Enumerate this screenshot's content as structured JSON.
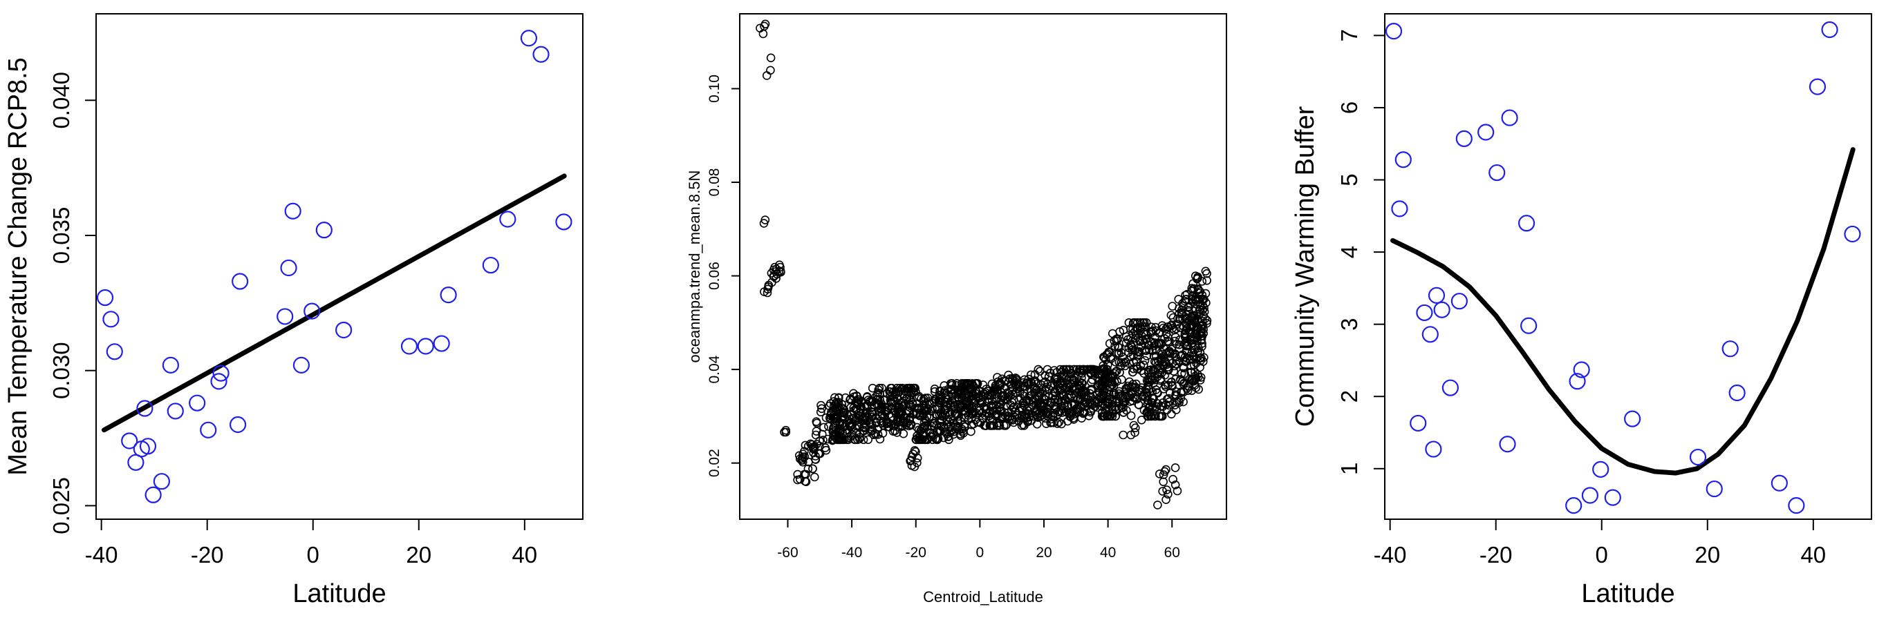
{
  "chart_data": [
    {
      "type": "scatter",
      "xlabel": "Latitude",
      "ylabel": "Mean Temperature Change RCP8.5",
      "xlim": [
        -41,
        51
      ],
      "ylim": [
        0.0245,
        0.0432
      ],
      "xticks": [
        -40,
        -20,
        0,
        20,
        40
      ],
      "xtick_labels": [
        "-40",
        "-20",
        "0",
        "20",
        "40"
      ],
      "yticks": [
        0.025,
        0.03,
        0.035,
        0.04
      ],
      "ytick_labels": [
        "0.025",
        "0.030",
        "0.035",
        "0.040"
      ],
      "point_color": "#2020ee",
      "fit_color": "#000000",
      "points": [
        {
          "x": -39.3,
          "y": 0.0327
        },
        {
          "x": -38.2,
          "y": 0.0319
        },
        {
          "x": -37.5,
          "y": 0.0307
        },
        {
          "x": -34.7,
          "y": 0.0274
        },
        {
          "x": -33.5,
          "y": 0.0266
        },
        {
          "x": -32.4,
          "y": 0.0271
        },
        {
          "x": -31.8,
          "y": 0.0286
        },
        {
          "x": -31.2,
          "y": 0.0272
        },
        {
          "x": -30.2,
          "y": 0.0254
        },
        {
          "x": -28.6,
          "y": 0.0259
        },
        {
          "x": -26.9,
          "y": 0.0302
        },
        {
          "x": -26.0,
          "y": 0.0285
        },
        {
          "x": -21.9,
          "y": 0.0288
        },
        {
          "x": -19.8,
          "y": 0.0278
        },
        {
          "x": -17.8,
          "y": 0.0296
        },
        {
          "x": -17.4,
          "y": 0.0299
        },
        {
          "x": -14.2,
          "y": 0.028
        },
        {
          "x": -13.8,
          "y": 0.0333
        },
        {
          "x": -5.3,
          "y": 0.032
        },
        {
          "x": -4.6,
          "y": 0.0338
        },
        {
          "x": -3.8,
          "y": 0.0359
        },
        {
          "x": -2.2,
          "y": 0.0302
        },
        {
          "x": -0.2,
          "y": 0.0322
        },
        {
          "x": 2.1,
          "y": 0.0352
        },
        {
          "x": 5.8,
          "y": 0.0315
        },
        {
          "x": 18.2,
          "y": 0.0309
        },
        {
          "x": 21.3,
          "y": 0.0309
        },
        {
          "x": 24.3,
          "y": 0.031
        },
        {
          "x": 25.6,
          "y": 0.0328
        },
        {
          "x": 33.6,
          "y": 0.0339
        },
        {
          "x": 36.8,
          "y": 0.0356
        },
        {
          "x": 40.8,
          "y": 0.0423
        },
        {
          "x": 43.1,
          "y": 0.0417
        },
        {
          "x": 47.4,
          "y": 0.0355
        }
      ],
      "fit_line": [
        {
          "x": -39.5,
          "y": 0.0278
        },
        {
          "x": 47.5,
          "y": 0.0372
        }
      ]
    },
    {
      "type": "scatter",
      "xlabel": "Centroid_Latitude",
      "ylabel": "oceanmpa.trend_mean.8.5N",
      "xlim": [
        -75,
        77
      ],
      "ylim": [
        0.008,
        0.116
      ],
      "xticks": [
        -60,
        -40,
        -20,
        0,
        20,
        40,
        60
      ],
      "xtick_labels": [
        "-60",
        "-40",
        "-20",
        "0",
        "20",
        "40",
        "60"
      ],
      "yticks": [
        0.02,
        0.04,
        0.06,
        0.08,
        0.1
      ],
      "ytick_labels": [
        "0.02",
        "0.04",
        "0.06",
        "0.08",
        "0.10"
      ],
      "point_color": "#000000",
      "clusters": [
        {
          "x": [
            -69,
            -67
          ],
          "y": [
            0.11,
            0.114
          ],
          "n": 4,
          "jitter": 0.001
        },
        {
          "x": [
            -67,
            -65
          ],
          "y": [
            0.102,
            0.107
          ],
          "n": 3,
          "jitter": 0.001
        },
        {
          "x": [
            -68,
            -66
          ],
          "y": [
            0.07,
            0.073
          ],
          "n": 2,
          "jitter": 0.001
        },
        {
          "x": [
            -68,
            -66
          ],
          "y": [
            0.056,
            0.058
          ],
          "n": 4,
          "jitter": 0.001
        },
        {
          "x": [
            -66,
            -62
          ],
          "y": [
            0.058,
            0.064
          ],
          "n": 16,
          "jitter": 0.002
        },
        {
          "x": [
            -63,
            -60
          ],
          "y": [
            0.026,
            0.027
          ],
          "n": 3,
          "jitter": 0.001
        },
        {
          "x": [
            -57,
            -50
          ],
          "y": [
            0.016,
            0.026
          ],
          "n": 35,
          "jitter": 0.003
        },
        {
          "x": [
            -52,
            -44
          ],
          "y": [
            0.022,
            0.034
          ],
          "n": 45,
          "jitter": 0.003
        },
        {
          "x": [
            -46,
            -20
          ],
          "y": [
            0.025,
            0.036
          ],
          "n": 330,
          "jitter": 0.003
        },
        {
          "x": [
            -22,
            -18
          ],
          "y": [
            0.019,
            0.023
          ],
          "n": 10,
          "jitter": 0.002
        },
        {
          "x": [
            -20,
            0
          ],
          "y": [
            0.025,
            0.037
          ],
          "n": 300,
          "jitter": 0.003
        },
        {
          "x": [
            0,
            40
          ],
          "y": [
            0.028,
            0.04
          ],
          "n": 520,
          "jitter": 0.003
        },
        {
          "x": [
            38,
            52
          ],
          "y": [
            0.03,
            0.05
          ],
          "n": 220,
          "jitter": 0.004
        },
        {
          "x": [
            52,
            70
          ],
          "y": [
            0.03,
            0.055
          ],
          "n": 340,
          "jitter": 0.004
        },
        {
          "x": [
            64,
            71
          ],
          "y": [
            0.045,
            0.061
          ],
          "n": 70,
          "jitter": 0.003
        },
        {
          "x": [
            55,
            62
          ],
          "y": [
            0.01,
            0.019
          ],
          "n": 14,
          "jitter": 0.002
        },
        {
          "x": [
            44,
            52
          ],
          "y": [
            0.026,
            0.034
          ],
          "n": 14,
          "jitter": 0.002
        }
      ]
    },
    {
      "type": "scatter",
      "xlabel": "Latitude",
      "ylabel": "Community Warming Buffer",
      "xlim": [
        -41,
        51
      ],
      "ylim": [
        0.3,
        7.3
      ],
      "xticks": [
        -40,
        -20,
        0,
        20,
        40
      ],
      "xtick_labels": [
        "-40",
        "-20",
        "0",
        "20",
        "40"
      ],
      "yticks": [
        1,
        2,
        3,
        4,
        5,
        6,
        7
      ],
      "ytick_labels": [
        "1",
        "2",
        "3",
        "4",
        "5",
        "6",
        "7"
      ],
      "point_color": "#2020ee",
      "fit_color": "#000000",
      "points": [
        {
          "x": -39.3,
          "y": 7.06
        },
        {
          "x": -38.2,
          "y": 4.6
        },
        {
          "x": -37.5,
          "y": 5.28
        },
        {
          "x": -34.7,
          "y": 1.63
        },
        {
          "x": -33.5,
          "y": 3.16
        },
        {
          "x": -32.4,
          "y": 2.86
        },
        {
          "x": -31.8,
          "y": 1.27
        },
        {
          "x": -31.2,
          "y": 3.4
        },
        {
          "x": -30.2,
          "y": 3.2
        },
        {
          "x": -28.6,
          "y": 2.12
        },
        {
          "x": -26.9,
          "y": 3.32
        },
        {
          "x": -26.0,
          "y": 5.57
        },
        {
          "x": -21.9,
          "y": 5.66
        },
        {
          "x": -19.8,
          "y": 5.1
        },
        {
          "x": -17.8,
          "y": 1.34
        },
        {
          "x": -17.4,
          "y": 5.86
        },
        {
          "x": -14.2,
          "y": 4.4
        },
        {
          "x": -13.8,
          "y": 2.98
        },
        {
          "x": -5.3,
          "y": 0.49
        },
        {
          "x": -4.6,
          "y": 2.21
        },
        {
          "x": -3.8,
          "y": 2.37
        },
        {
          "x": -2.2,
          "y": 0.63
        },
        {
          "x": -0.2,
          "y": 0.99
        },
        {
          "x": 2.1,
          "y": 0.6
        },
        {
          "x": 5.8,
          "y": 1.69
        },
        {
          "x": 18.2,
          "y": 1.16
        },
        {
          "x": 21.3,
          "y": 0.72
        },
        {
          "x": 24.3,
          "y": 2.66
        },
        {
          "x": 25.6,
          "y": 2.05
        },
        {
          "x": 33.6,
          "y": 0.8
        },
        {
          "x": 36.8,
          "y": 0.49
        },
        {
          "x": 40.8,
          "y": 6.29
        },
        {
          "x": 43.1,
          "y": 7.08
        },
        {
          "x": 47.4,
          "y": 4.25
        }
      ],
      "fit_curve": [
        {
          "x": -39.5,
          "y": 4.16
        },
        {
          "x": -35,
          "y": 4.0
        },
        {
          "x": -30,
          "y": 3.8
        },
        {
          "x": -25,
          "y": 3.52
        },
        {
          "x": -20,
          "y": 3.12
        },
        {
          "x": -15,
          "y": 2.62
        },
        {
          "x": -10,
          "y": 2.1
        },
        {
          "x": -5,
          "y": 1.65
        },
        {
          "x": 0,
          "y": 1.28
        },
        {
          "x": 5,
          "y": 1.06
        },
        {
          "x": 10,
          "y": 0.96
        },
        {
          "x": 14,
          "y": 0.94
        },
        {
          "x": 18,
          "y": 1.0
        },
        {
          "x": 22,
          "y": 1.2
        },
        {
          "x": 27,
          "y": 1.6
        },
        {
          "x": 32,
          "y": 2.25
        },
        {
          "x": 37,
          "y": 3.05
        },
        {
          "x": 42,
          "y": 4.05
        },
        {
          "x": 47.5,
          "y": 5.42
        }
      ]
    }
  ]
}
